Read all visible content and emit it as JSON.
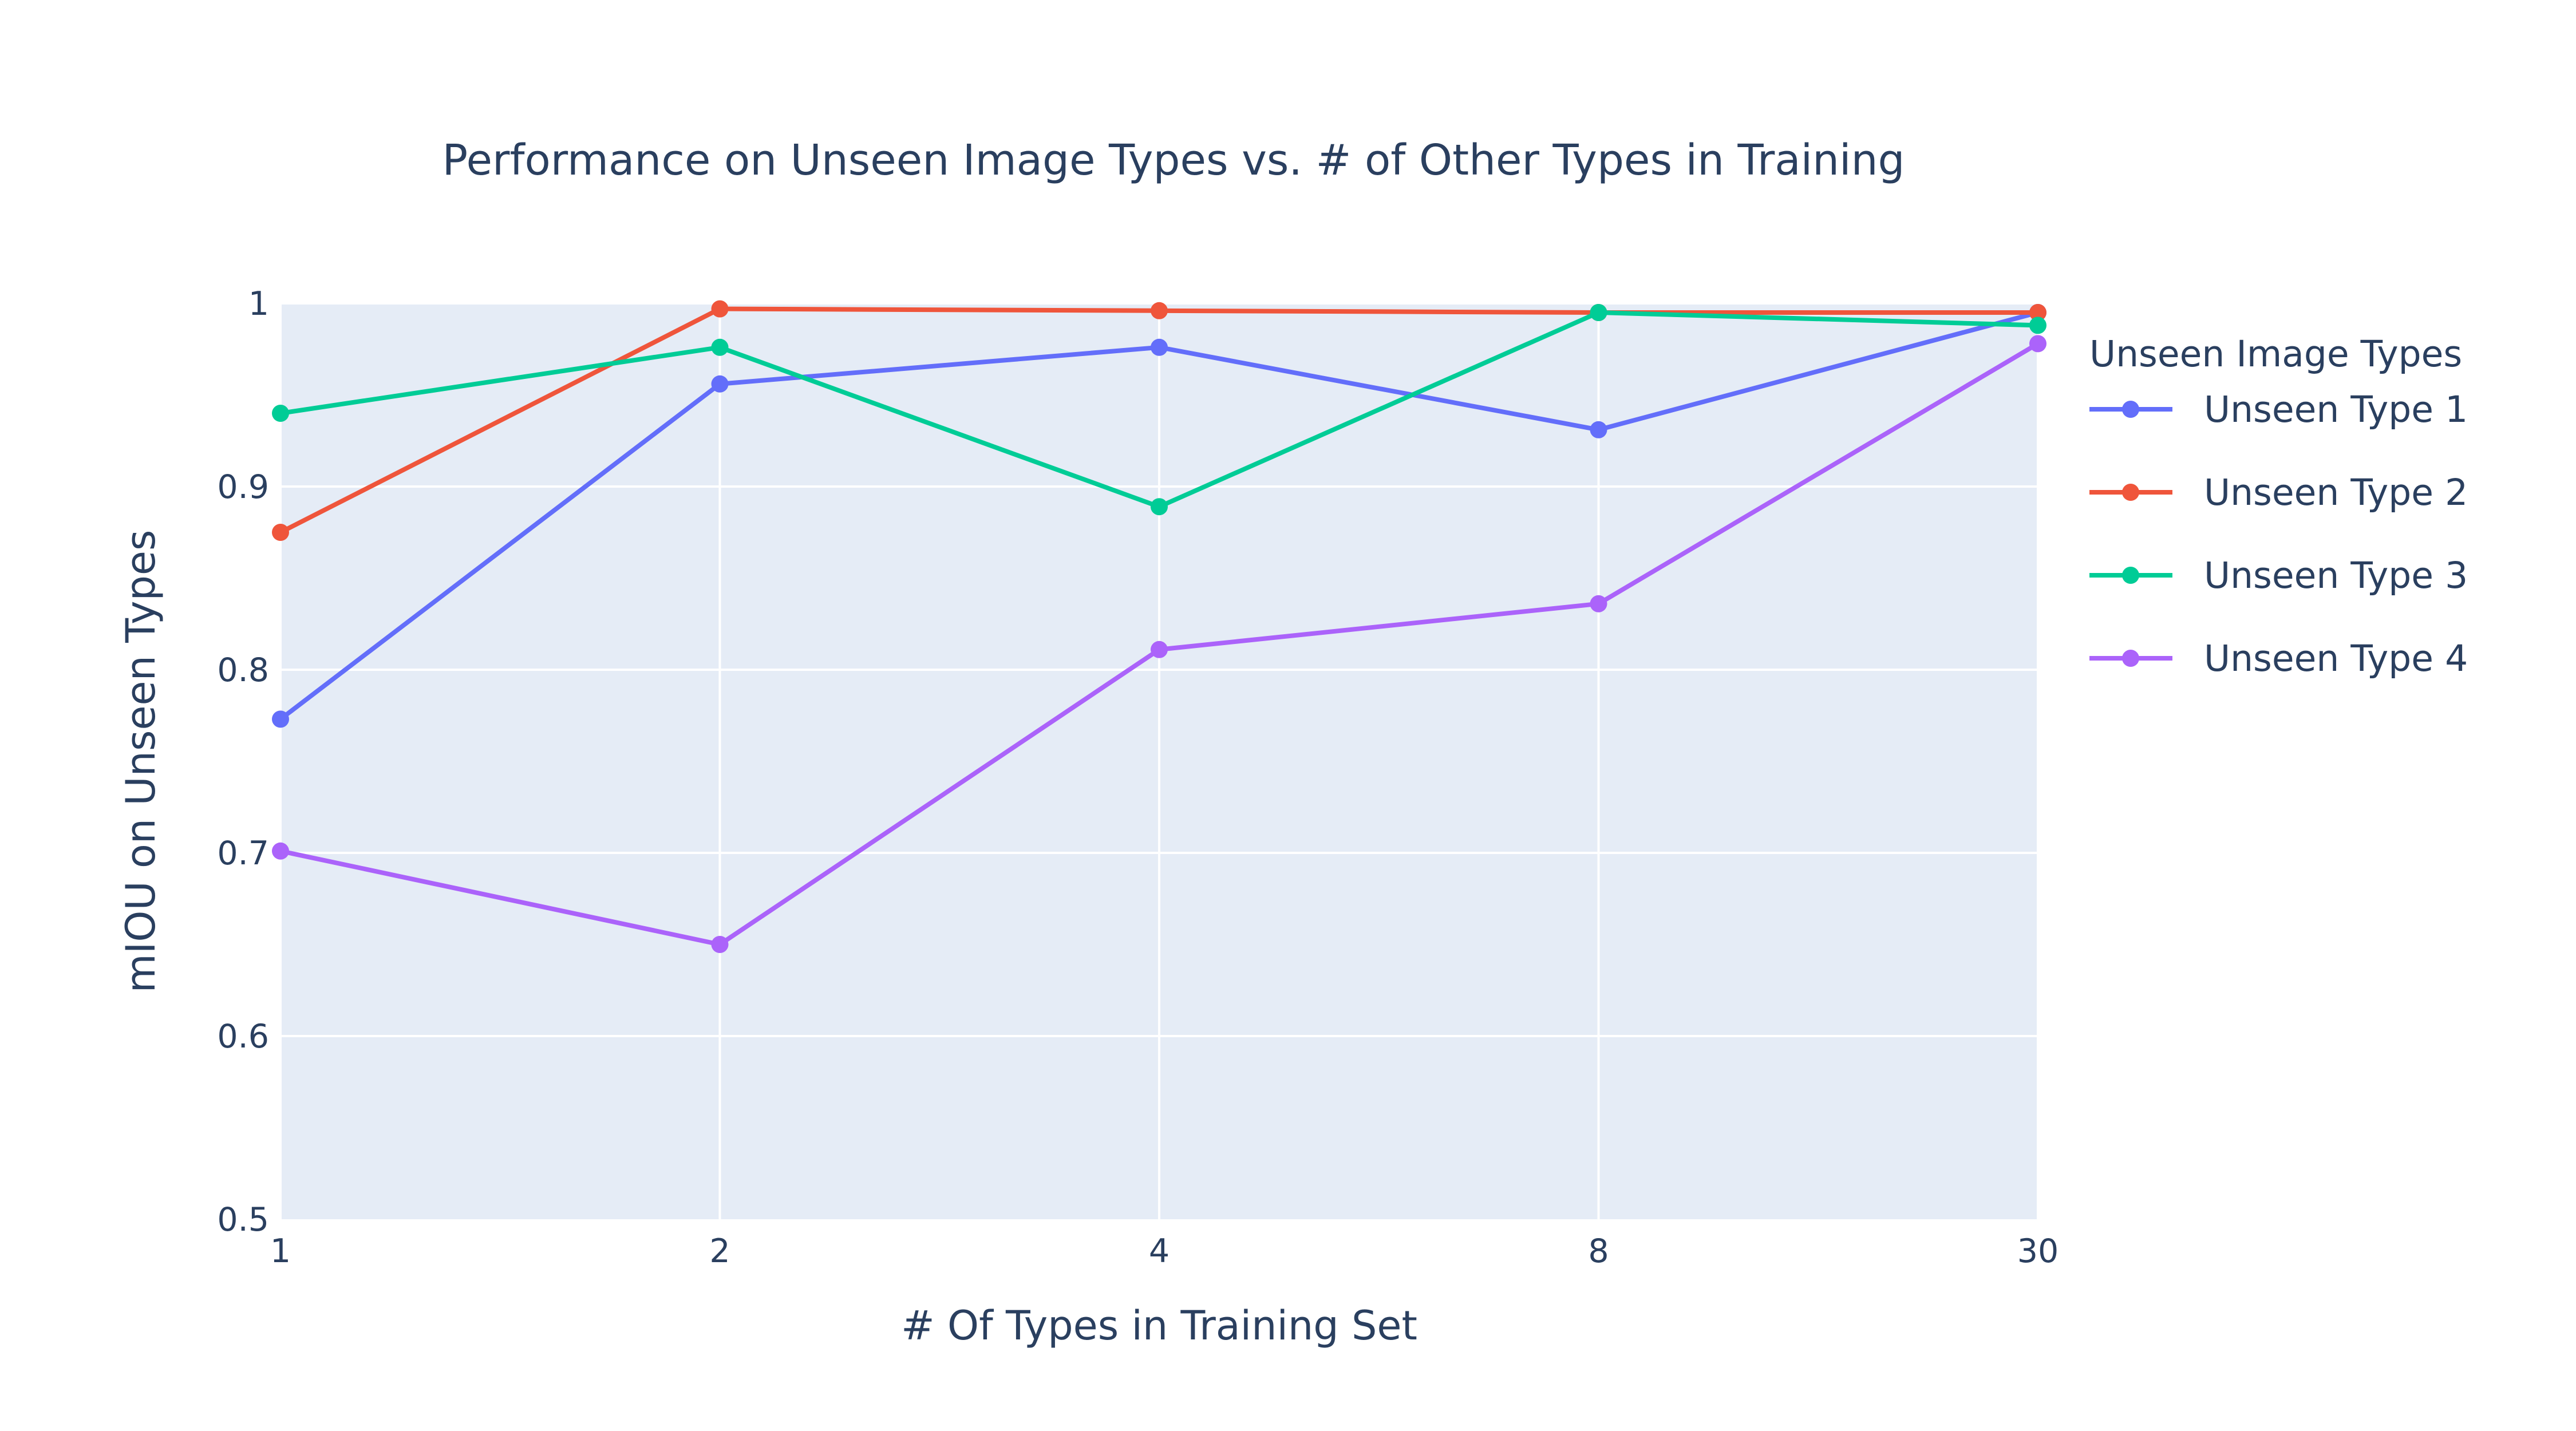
{
  "chart_data": {
    "type": "line",
    "title": "Performance on Unseen Image Types vs. # of Other Types in Training",
    "xlabel": "# Of Types in Training Set",
    "ylabel": "mIOU on Unseen Types",
    "x": [
      1,
      2,
      4,
      8,
      30
    ],
    "x_tick_labels": [
      "1",
      "2",
      "4",
      "8",
      "30"
    ],
    "x_scale": "categorical",
    "ylim": [
      0.5,
      1.0
    ],
    "y_ticks": [
      0.5,
      0.6,
      0.7,
      0.8,
      0.9,
      1.0
    ],
    "y_tick_labels": [
      "0.5",
      "0.6",
      "0.7",
      "0.8",
      "0.9",
      "1"
    ],
    "grid": true,
    "plot_background": "#e5ecf6",
    "legend_title": "Unseen Image Types",
    "legend_position": "right",
    "series": [
      {
        "name": "Unseen Type 1",
        "color": "#636efa",
        "values": [
          0.773,
          0.956,
          0.976,
          0.931,
          0.995
        ]
      },
      {
        "name": "Unseen Type 2",
        "color": "#ef553b",
        "values": [
          0.875,
          0.997,
          0.996,
          0.995,
          0.995
        ]
      },
      {
        "name": "Unseen Type 3",
        "color": "#00cc96",
        "values": [
          0.94,
          0.976,
          0.889,
          0.995,
          0.988
        ]
      },
      {
        "name": "Unseen Type 4",
        "color": "#ab63fa",
        "values": [
          0.701,
          0.65,
          0.811,
          0.836,
          0.978
        ]
      }
    ]
  }
}
